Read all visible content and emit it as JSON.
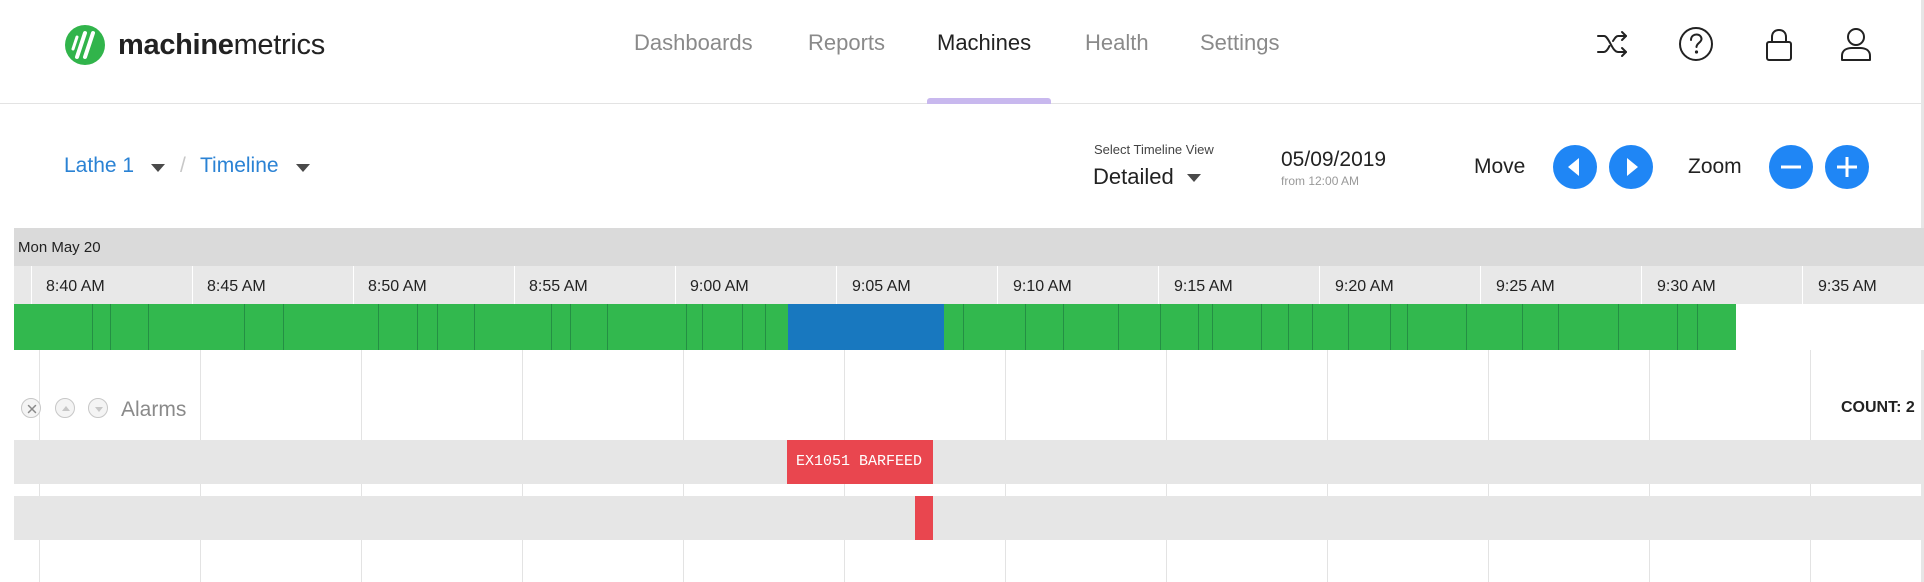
{
  "brand": {
    "name_bold": "machine",
    "name_light": "metrics",
    "color": "#31b44b"
  },
  "nav": {
    "items": [
      {
        "label": "Dashboards",
        "active": false
      },
      {
        "label": "Reports",
        "active": false
      },
      {
        "label": "Machines",
        "active": true
      },
      {
        "label": "Health",
        "active": false
      },
      {
        "label": "Settings",
        "active": false
      }
    ]
  },
  "header_icons": [
    "shuffle-icon",
    "help-icon",
    "lock-icon",
    "user-icon"
  ],
  "breadcrumb": {
    "machine": "Lathe 1",
    "separator": "/",
    "view": "Timeline"
  },
  "timeline_view": {
    "label": "Select Timeline View",
    "value": "Detailed"
  },
  "date": {
    "value": "05/09/2019",
    "from": "from 12:00 AM"
  },
  "controls": {
    "move_label": "Move",
    "zoom_label": "Zoom"
  },
  "timeline": {
    "day_label": "Mon May 20",
    "ticks": [
      "8:40 AM",
      "8:45 AM",
      "8:50 AM",
      "8:55 AM",
      "9:00 AM",
      "9:05 AM",
      "9:10 AM",
      "9:15 AM",
      "9:20 AM",
      "9:25 AM",
      "9:30 AM",
      "9:35 AM"
    ],
    "colors": {
      "running": "#32b84e",
      "setup": "#1878bf",
      "alarm": "#e9464f"
    }
  },
  "alarms": {
    "title": "Alarms",
    "count_label": "COUNT: 2",
    "events": [
      {
        "text": "EX1051 BARFEED"
      },
      {
        "text": ""
      }
    ]
  }
}
